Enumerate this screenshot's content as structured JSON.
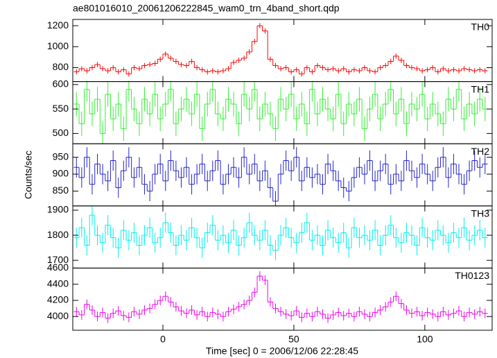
{
  "chart_data": {
    "type": "step",
    "title": "ae801016010_20061206222845_wam0_trn_4band_short.qdp",
    "xlabel": "Time [sec] 0 = 2006/12/06 22:28:45",
    "ylabel": "Counts/sec",
    "xlim": [
      -34.4,
      125.7
    ],
    "xticks": [
      0,
      50,
      100
    ],
    "x": [
      -33,
      -31,
      -29,
      -27,
      -25,
      -23,
      -21,
      -19,
      -17,
      -15,
      -13,
      -11,
      -9,
      -7,
      -5,
      -3,
      -1,
      1,
      3,
      5,
      7,
      9,
      11,
      13,
      15,
      17,
      19,
      21,
      23,
      25,
      27,
      29,
      31,
      33,
      35,
      37,
      39,
      41,
      43,
      45,
      47,
      49,
      51,
      53,
      55,
      57,
      59,
      61,
      63,
      65,
      67,
      69,
      71,
      73,
      75,
      77,
      79,
      81,
      83,
      85,
      87,
      89,
      91,
      93,
      95,
      97,
      99,
      101,
      103,
      105,
      107,
      109,
      111,
      113,
      115,
      117,
      119,
      121,
      123
    ],
    "panels": [
      {
        "name": "TH0",
        "color": "#ff0000",
        "error": 25,
        "ylim": [
          667,
          1260
        ],
        "yticks": [
          800,
          1000,
          1200
        ],
        "values": [
          760,
          790,
          770,
          800,
          830,
          790,
          770,
          800,
          760,
          780,
          740,
          800,
          790,
          820,
          830,
          840,
          880,
          930,
          890,
          860,
          830,
          820,
          860,
          800,
          780,
          760,
          770,
          760,
          770,
          790,
          850,
          870,
          890,
          950,
          1050,
          1200,
          1150,
          880,
          820,
          790,
          800,
          760,
          780,
          740,
          800,
          760,
          820,
          800,
          780,
          790,
          770,
          790,
          760,
          780,
          770,
          800,
          770,
          760,
          800,
          820,
          860,
          910,
          870,
          820,
          800,
          790,
          770,
          780,
          800,
          760,
          790,
          770,
          780,
          770,
          790,
          780,
          770,
          780,
          770
        ]
      },
      {
        "name": "TH1",
        "color": "#33ee33",
        "error": 25,
        "ylim": [
          479,
          606
        ],
        "yticks": [
          500,
          550,
          600
        ],
        "values": [
          560,
          520,
          590,
          540,
          570,
          500,
          580,
          530,
          560,
          510,
          590,
          550,
          520,
          570,
          540,
          580,
          530,
          560,
          590,
          520,
          550,
          570,
          540,
          580,
          510,
          560,
          590,
          540,
          530,
          570,
          560,
          520,
          580,
          550,
          590,
          530,
          560,
          540,
          510,
          570,
          550,
          580,
          530,
          560,
          520,
          590,
          540,
          570,
          550,
          530,
          580,
          520,
          560,
          540,
          570,
          510,
          550,
          580,
          530,
          560,
          590,
          540,
          570,
          520,
          560,
          550,
          580,
          530,
          560,
          540,
          520,
          570,
          550,
          590,
          530,
          560,
          540,
          570,
          550
        ]
      },
      {
        "name": "TH2",
        "color": "#2222cc",
        "error": 30,
        "ylim": [
          806,
          990
        ],
        "yticks": [
          850,
          900,
          950
        ],
        "values": [
          920,
          890,
          950,
          870,
          930,
          900,
          880,
          940,
          860,
          910,
          950,
          890,
          920,
          870,
          850,
          900,
          930,
          880,
          940,
          910,
          890,
          920,
          870,
          900,
          930,
          880,
          910,
          940,
          870,
          900,
          920,
          890,
          950,
          900,
          930,
          880,
          910,
          860,
          820,
          900,
          940,
          910,
          950,
          880,
          920,
          890,
          900,
          870,
          930,
          910,
          880,
          860,
          850,
          890,
          920,
          900,
          940,
          880,
          910,
          930,
          870,
          900,
          880,
          940,
          910,
          890,
          930,
          900,
          880,
          920,
          950,
          890,
          930,
          900,
          870,
          910,
          940,
          920,
          930
        ]
      },
      {
        "name": "TH3",
        "color": "#00eeee",
        "error": 40,
        "ylim": [
          1669,
          1917
        ],
        "yticks": [
          1700,
          1800,
          1900
        ],
        "values": [
          1790,
          1830,
          1760,
          1880,
          1800,
          1770,
          1840,
          1790,
          1750,
          1820,
          1780,
          1810,
          1760,
          1800,
          1830,
          1770,
          1790,
          1850,
          1810,
          1760,
          1800,
          1780,
          1830,
          1790,
          1750,
          1810,
          1840,
          1780,
          1800,
          1770,
          1820,
          1760,
          1790,
          1850,
          1800,
          1780,
          1820,
          1760,
          1740,
          1800,
          1830,
          1790,
          1770,
          1810,
          1850,
          1780,
          1800,
          1760,
          1820,
          1790,
          1770,
          1810,
          1750,
          1830,
          1790,
          1800,
          1780,
          1820,
          1760,
          1800,
          1840,
          1790,
          1770,
          1810,
          1800,
          1760,
          1830,
          1790,
          1780,
          1820,
          1800,
          1770,
          1810,
          1790,
          1830,
          1780,
          1800,
          1820,
          1790
        ]
      },
      {
        "name": "TH0123",
        "color": "#ee00ee",
        "error": 60,
        "ylim": [
          3830,
          4600
        ],
        "yticks": [
          4000,
          4200,
          4400,
          4600
        ],
        "values": [
          4060,
          4020,
          4150,
          4080,
          4000,
          4050,
          3980,
          4040,
          4070,
          4010,
          3990,
          4060,
          4030,
          4080,
          4100,
          4150,
          4200,
          4250,
          4180,
          4120,
          4070,
          4040,
          4080,
          4020,
          4060,
          4000,
          4050,
          4030,
          4000,
          4060,
          4090,
          4120,
          4150,
          4200,
          4300,
          4500,
          4450,
          4180,
          4100,
          4060,
          4030,
          4010,
          4070,
          3990,
          4040,
          4000,
          4060,
          4030,
          3980,
          4020,
          4050,
          4010,
          4040,
          4000,
          4060,
          4030,
          4000,
          4050,
          4080,
          4120,
          4180,
          4250,
          4160,
          4080,
          4040,
          4060,
          4010,
          4050,
          4030,
          4000,
          4060,
          4020,
          4040,
          4070,
          4000,
          4050,
          4030,
          4060,
          4040
        ]
      }
    ]
  }
}
